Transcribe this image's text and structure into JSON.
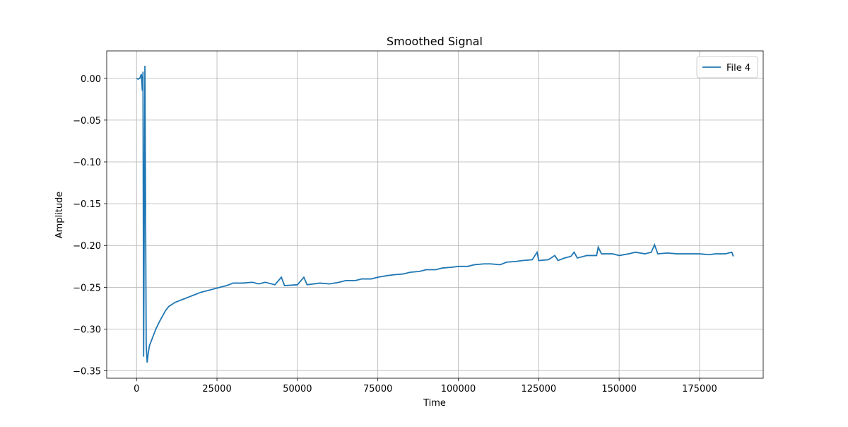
{
  "chart_data": {
    "type": "line",
    "title": "Smoothed Signal",
    "x_label": "Time",
    "y_label": "Amplitude",
    "x": [
      0,
      500,
      1000,
      1500,
      1800,
      2000,
      2200,
      2600,
      3000,
      3300,
      3600,
      4000,
      5000,
      6000,
      7000,
      8000,
      9000,
      10000,
      12000,
      14000,
      16000,
      18000,
      20000,
      22000,
      25000,
      28000,
      30000,
      33000,
      36000,
      38000,
      40000,
      43000,
      45000,
      46000,
      50000,
      52000,
      53000,
      57000,
      60000,
      63000,
      65000,
      68000,
      70000,
      73000,
      75000,
      78000,
      80000,
      83000,
      85000,
      88000,
      90000,
      93000,
      95000,
      98000,
      100000,
      103000,
      105000,
      108000,
      110000,
      113000,
      115000,
      118000,
      120000,
      123000,
      124500,
      125000,
      128000,
      130000,
      131000,
      133000,
      135000,
      136000,
      137000,
      140000,
      143000,
      143500,
      144500,
      148000,
      150000,
      153000,
      155000,
      158000,
      160000,
      161000,
      162000,
      165000,
      168000,
      170000,
      173000,
      175000,
      178000,
      180000,
      183000,
      185000,
      185500
    ],
    "series": [
      {
        "name": "File 4",
        "color": "#1f77b4",
        "values": [
          0.0,
          -0.001,
          0.0,
          0.005,
          -0.015,
          0.008,
          -0.333,
          0.015,
          -0.32,
          -0.34,
          -0.33,
          -0.32,
          -0.31,
          -0.3,
          -0.292,
          -0.285,
          -0.278,
          -0.273,
          -0.268,
          -0.265,
          -0.262,
          -0.259,
          -0.256,
          -0.254,
          -0.251,
          -0.248,
          -0.245,
          -0.245,
          -0.244,
          -0.246,
          -0.244,
          -0.247,
          -0.238,
          -0.248,
          -0.247,
          -0.238,
          -0.247,
          -0.245,
          -0.246,
          -0.244,
          -0.242,
          -0.242,
          -0.24,
          -0.24,
          -0.238,
          -0.236,
          -0.235,
          -0.234,
          -0.232,
          -0.231,
          -0.229,
          -0.229,
          -0.227,
          -0.226,
          -0.225,
          -0.225,
          -0.223,
          -0.222,
          -0.222,
          -0.223,
          -0.22,
          -0.219,
          -0.218,
          -0.217,
          -0.208,
          -0.218,
          -0.217,
          -0.212,
          -0.218,
          -0.215,
          -0.213,
          -0.208,
          -0.215,
          -0.212,
          -0.212,
          -0.202,
          -0.21,
          -0.21,
          -0.212,
          -0.21,
          -0.208,
          -0.21,
          -0.208,
          -0.199,
          -0.21,
          -0.209,
          -0.21,
          -0.21,
          -0.21,
          -0.21,
          -0.211,
          -0.21,
          -0.21,
          -0.208,
          -0.213
        ]
      }
    ],
    "xlim": [
      -9275,
      194775
    ],
    "ylim": [
      -0.3588,
      0.0328
    ],
    "xticks": [
      0,
      25000,
      50000,
      75000,
      100000,
      125000,
      150000,
      175000
    ],
    "yticks": [
      {
        "value": 0,
        "label": "0.00"
      },
      {
        "value": -0.05,
        "label": "−0.05"
      },
      {
        "value": -0.1,
        "label": "−0.10"
      },
      {
        "value": -0.15,
        "label": "−0.15"
      },
      {
        "value": -0.2,
        "label": "−0.20"
      },
      {
        "value": -0.25,
        "label": "−0.25"
      },
      {
        "value": -0.3,
        "label": "−0.30"
      },
      {
        "value": -0.35,
        "label": "−0.35"
      }
    ],
    "grid": true,
    "legend": "upper-right"
  }
}
